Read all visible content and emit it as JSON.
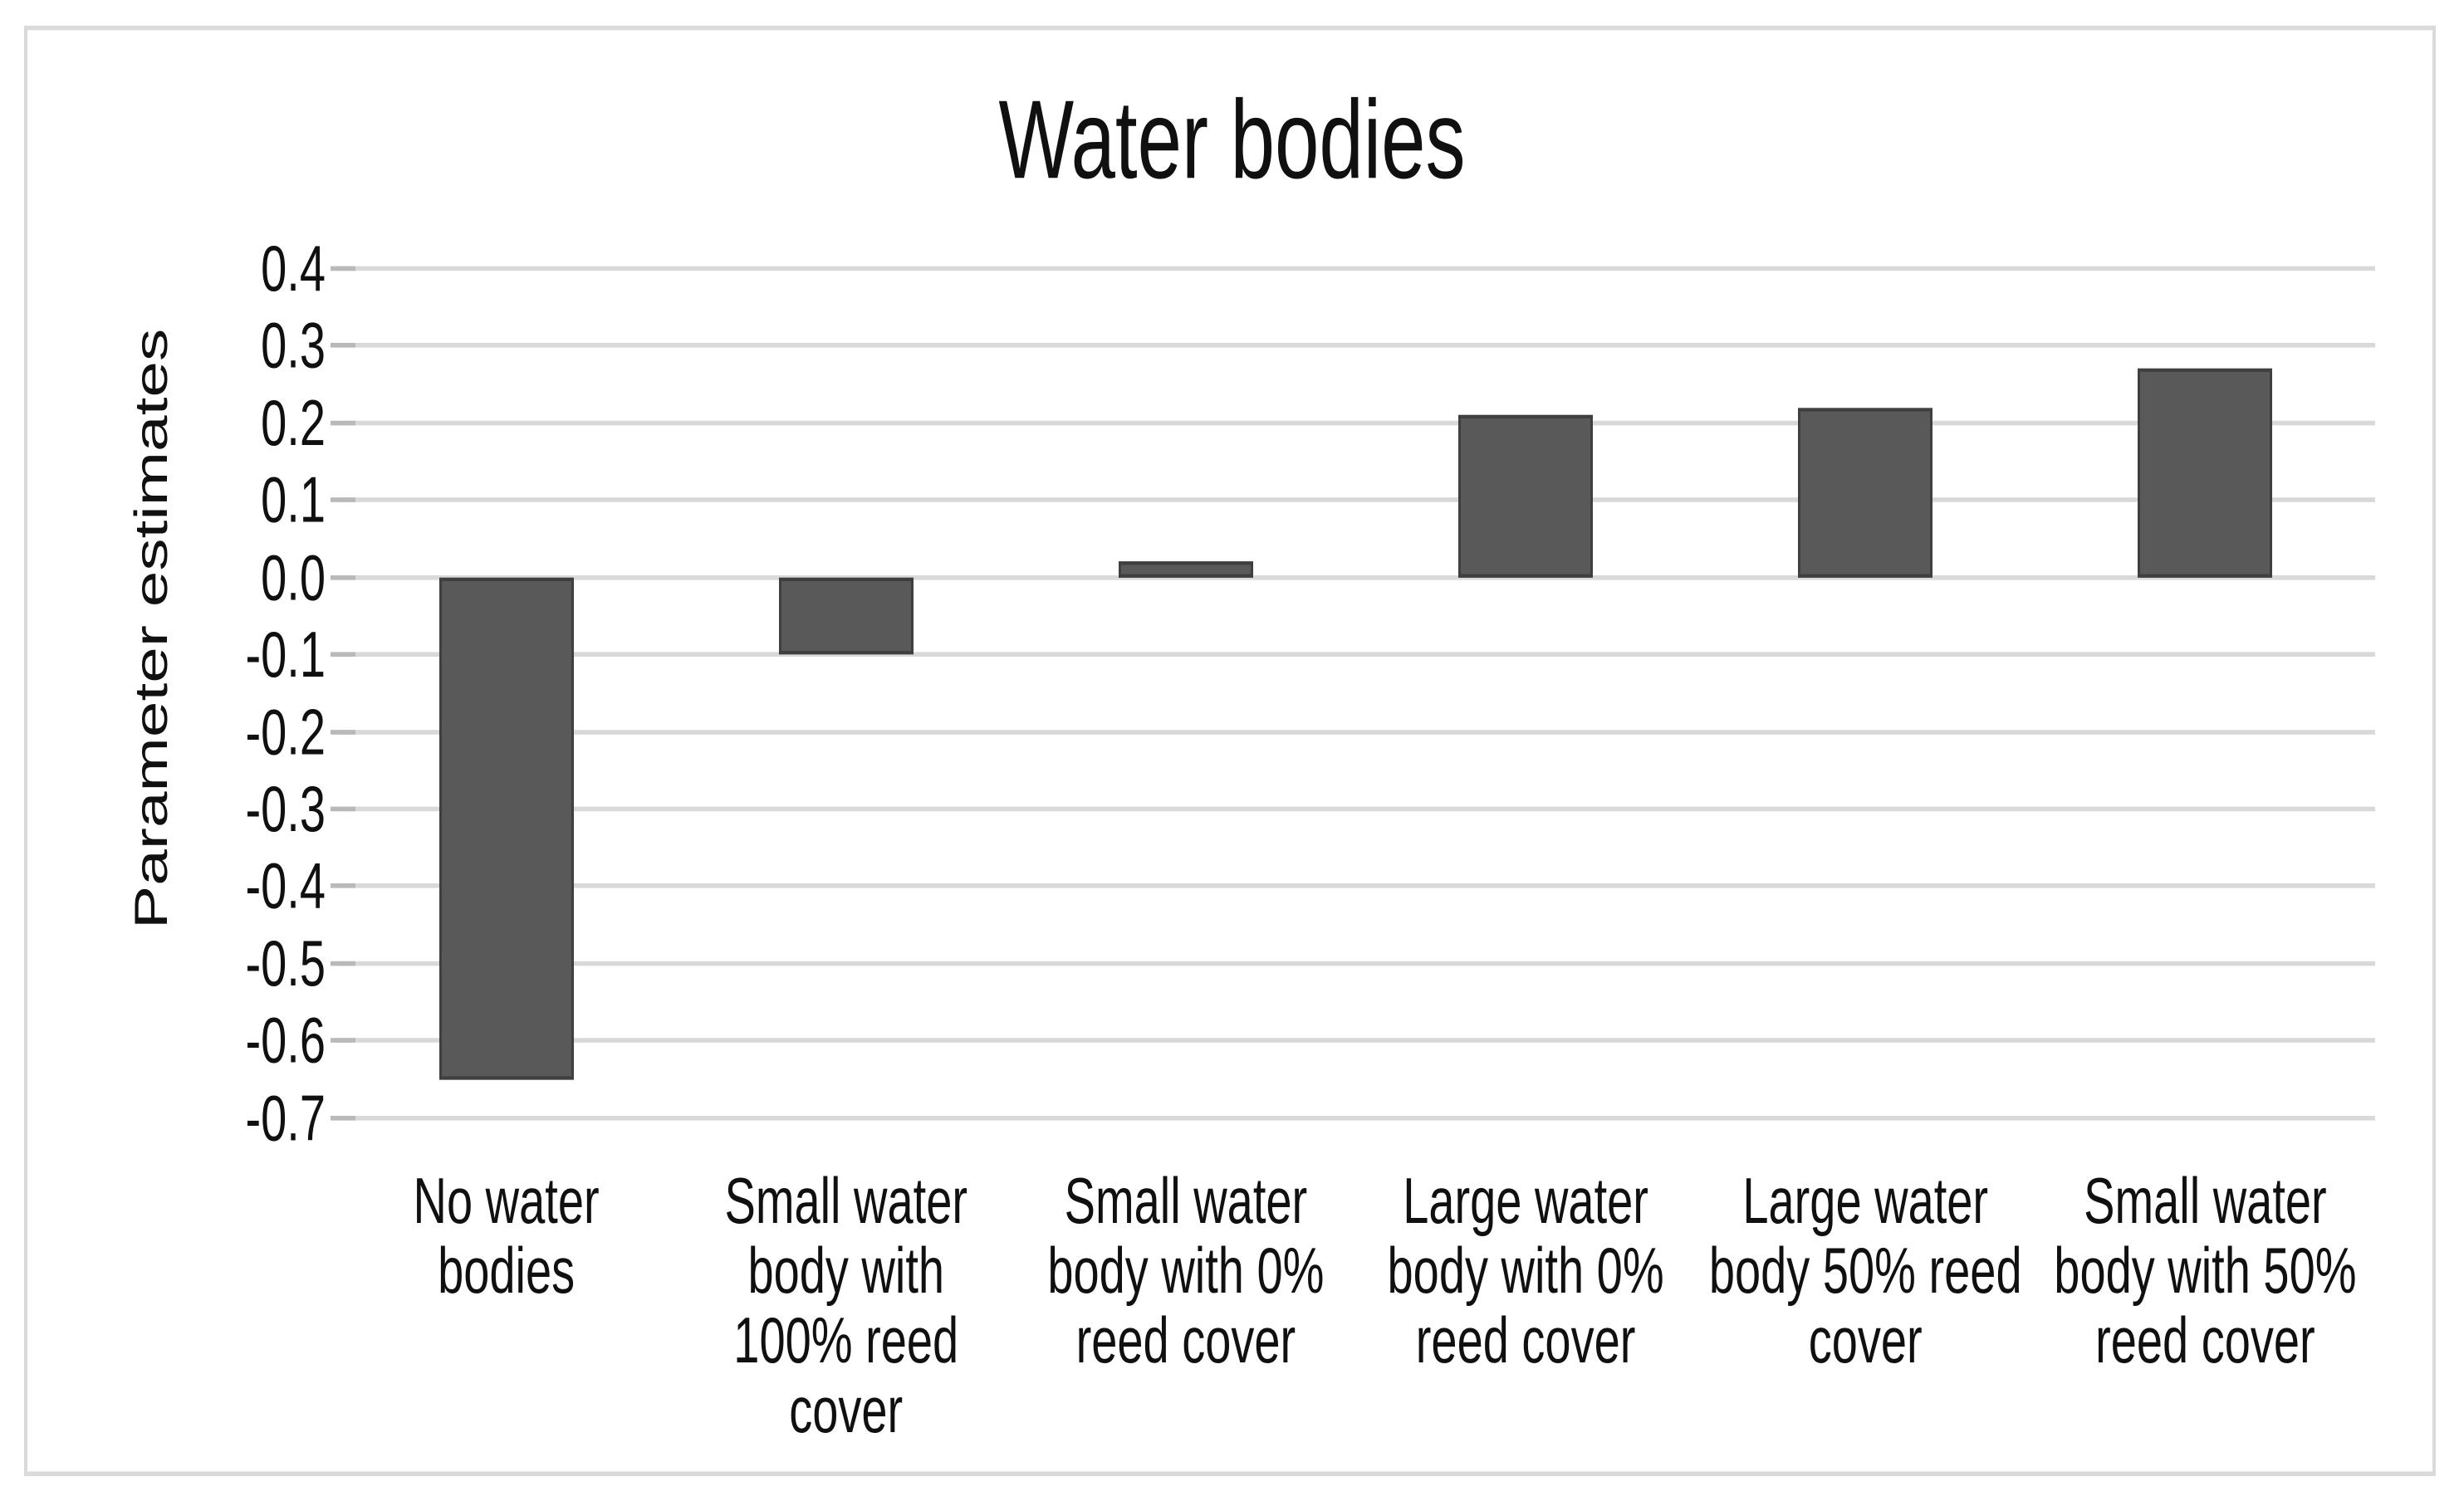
{
  "chart_data": {
    "type": "bar",
    "title": "Water bodies",
    "xlabel": "",
    "ylabel": "Parameter estimates",
    "categories": [
      "No water\nbodies",
      "Small water\nbody with\n100% reed\ncover",
      "Small water\nbody with 0%\nreed cover",
      "Large water\nbody with 0%\nreed cover",
      "Large water\nbody 50% reed\ncover",
      "Small water\nbody with 50%\nreed cover"
    ],
    "values": [
      -0.65,
      -0.1,
      0.02,
      0.21,
      0.22,
      0.27
    ],
    "ylim": [
      -0.7,
      0.4
    ],
    "ytick_step": 0.1,
    "ytick_labels": [
      "0.4",
      "0.3",
      "0.2",
      "0.1",
      "0.0",
      "-0.1",
      "-0.2",
      "-0.3",
      "-0.4",
      "-0.5",
      "-0.6",
      "-0.7"
    ],
    "grid": true,
    "legend": "none",
    "bar_color": "#595959",
    "bar_border_color": "#3f3f3f",
    "gridline_color": "#d9d9d9",
    "frame_border_color": "#dadada",
    "text_color": "#101010",
    "background_color": "#ffffff"
  }
}
